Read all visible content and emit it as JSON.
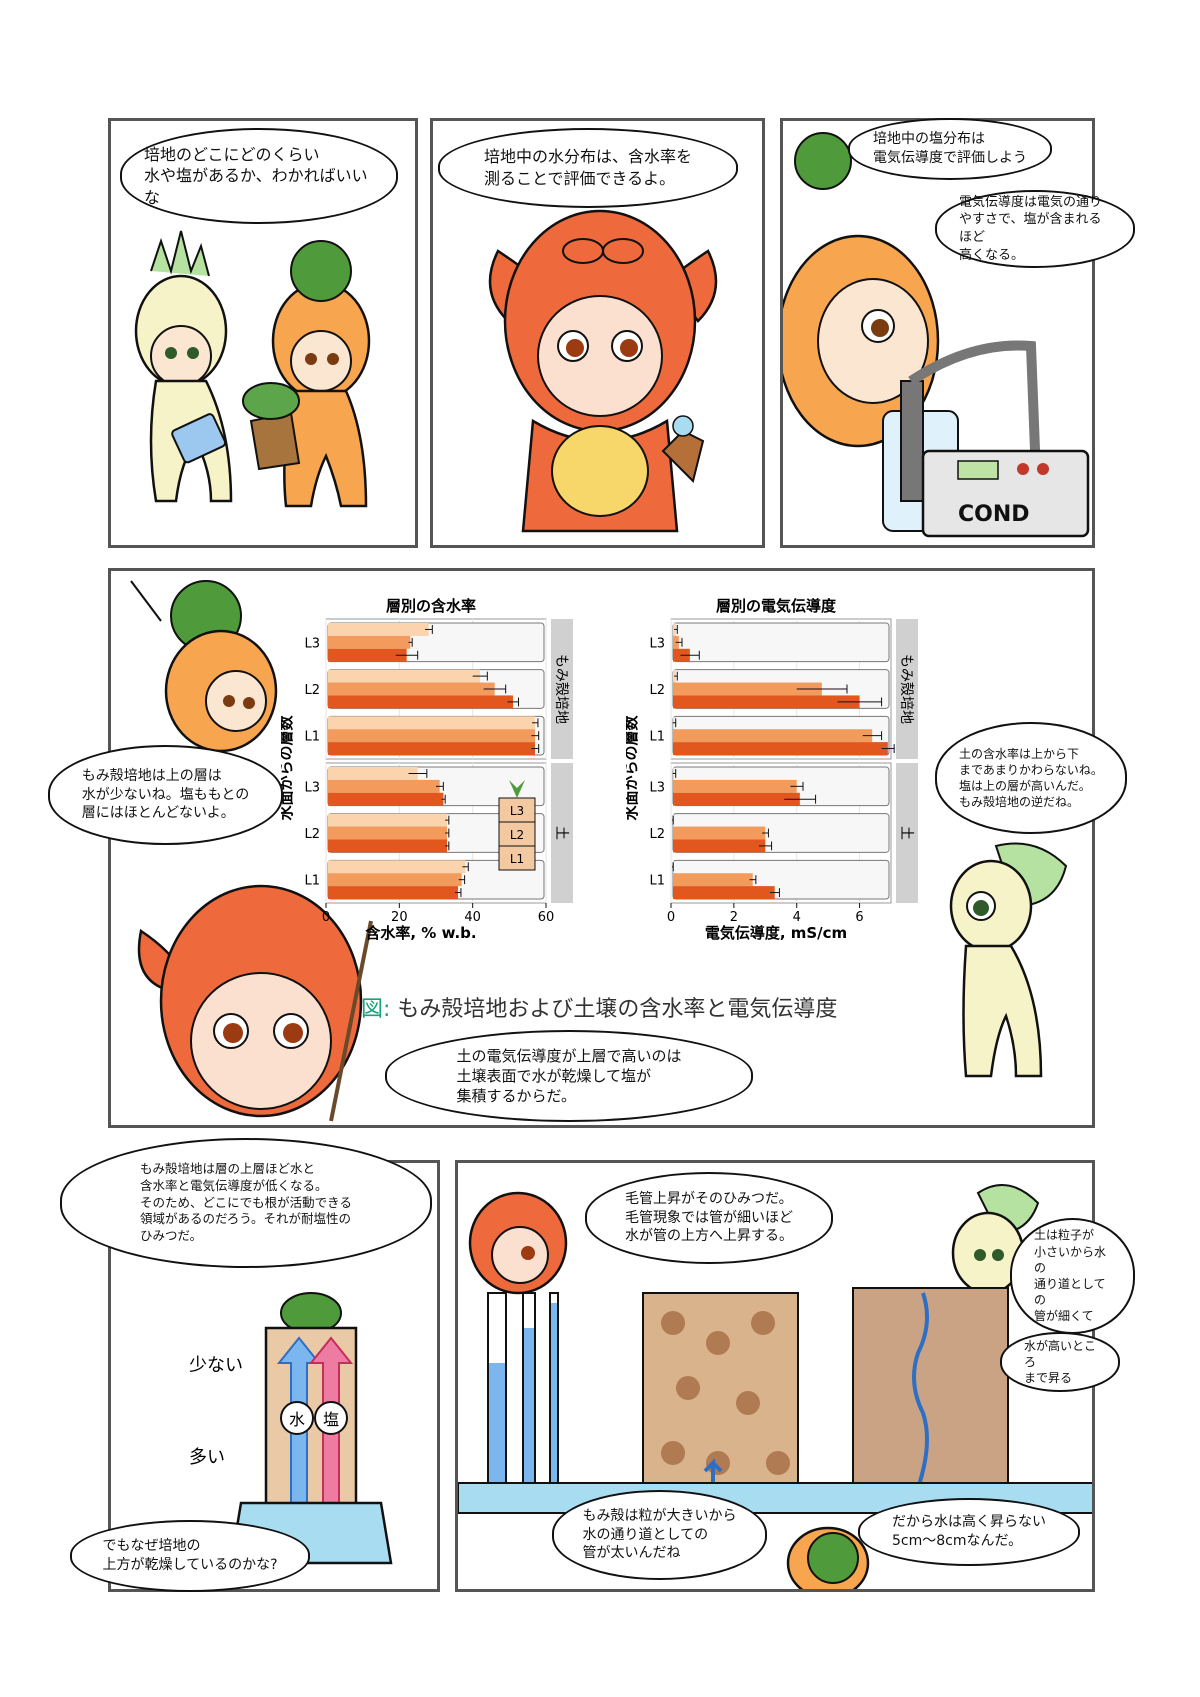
{
  "panel1": {
    "bubble": "培地のどこにどのくらい\n水や塩があるか、わかればいいな"
  },
  "panel2": {
    "bubble": "培地中の水分布は、含水率を\n測ることで評価できるよ。"
  },
  "panel3": {
    "bubble_top": "培地中の塩分布は\n電気伝導度で評価しよう",
    "bubble_side": "電気伝導度は電気の通り\nやすさで、塩が含まれるほど\n高くなる。",
    "meter_label": "COND"
  },
  "panel4": {
    "bubble_left": "もみ殻培地は上の層は\n水が少ないね。塩ももとの\n層にはほとんどないよ。",
    "bubble_right": "土の含水率は上から下\nまであまりかわらないね。\n塩は上の層が高いんだ。\nもみ殻培地の逆だね。",
    "bubble_bottom": "土の電気伝導度が上層で高いのは\n土壌表面で水が乾燥して塩が\n集積するからだ。",
    "caption_label": "図:",
    "caption_text": "もみ殻培地および土壌の含水率と電気伝導度",
    "strip_top": "もみ殻培地",
    "strip_bottom": "土",
    "ylabel": "水面からの層数",
    "legend_layers": [
      "L3",
      "L2",
      "L1"
    ]
  },
  "panel5": {
    "bubble_top": "もみ殻培地は層の上層ほど水と\n含水率と電気伝導度が低くなる。\nそのため、どこにでも根が活動できる\n領域があるのだろう。それが耐塩性の\nひみつだ。",
    "bubble_bottom": "でもなぜ培地の\n上方が乾燥しているのかな?",
    "label_few": "少ない",
    "label_many": "多い",
    "arrow_water": "水",
    "arrow_salt": "塩"
  },
  "panel6": {
    "bubble_top": "毛管上昇がそのひみつだ。\n毛管現象では管が細いほど\n水が管の上方へ上昇する。",
    "bubble_right1": "土は粒子が\n小さいから水の\n通り道としての\n管が細くて",
    "bubble_right2": "水が高いところ\nまで昇る",
    "bubble_bottom1": "もみ殻は粒が大きいから\n水の通り道としての\n管が太いんだね",
    "bubble_bottom2": "だから水は高く昇らない\n5cm〜8cmなんだ。"
  },
  "chart_data": [
    {
      "type": "bar",
      "title": "層別の含水率",
      "xlabel": "含水率, % w.b.",
      "ylabel": "水面からの層数",
      "xlim": [
        0,
        60
      ],
      "xticks": [
        0,
        20,
        40,
        60
      ],
      "facets": [
        "もみ殻培地",
        "土"
      ],
      "categories": [
        "L3",
        "L2",
        "L1"
      ],
      "panels": [
        {
          "facet": "もみ殻培地",
          "bars": {
            "L3": [
              28,
              23,
              22
            ],
            "L2": [
              42,
              46,
              51
            ],
            "L1": [
              57,
              57,
              57
            ]
          }
        },
        {
          "facet": "土",
          "bars": {
            "L3": [
              25,
              31,
              32
            ],
            "L2": [
              33,
              33,
              33
            ],
            "L1": [
              38,
              37,
              36
            ]
          }
        }
      ],
      "errors": {
        "もみ殻培地": {
          "L3": [
            1,
            0.5,
            3
          ],
          "L2": [
            2,
            3,
            1.5
          ],
          "L1": [
            0.8,
            1,
            1
          ]
        },
        "土": {
          "L3": [
            2.5,
            1,
            0.5
          ],
          "L2": [
            0.5,
            0.5,
            0.5
          ],
          "L1": [
            0.8,
            0.8,
            0.8
          ]
        }
      },
      "colors": [
        "#fbd3ac",
        "#f29b5c",
        "#e2571e"
      ]
    },
    {
      "type": "bar",
      "title": "層別の電気伝導度",
      "xlabel": "電気伝導度, mS/cm",
      "ylabel": "水面からの層数",
      "xlim": [
        0,
        7
      ],
      "xticks": [
        0,
        2,
        4,
        6
      ],
      "facets": [
        "もみ殻培地",
        "土"
      ],
      "categories": [
        "L3",
        "L2",
        "L1"
      ],
      "panels": [
        {
          "facet": "もみ殻培地",
          "bars": {
            "L3": [
              0.15,
              0.25,
              0.6
            ],
            "L2": [
              0.15,
              4.8,
              6.0
            ],
            "L1": [
              0.1,
              6.4,
              6.9
            ]
          }
        },
        {
          "facet": "土",
          "bars": {
            "L3": [
              0.1,
              4.0,
              4.1
            ],
            "L2": [
              0.05,
              3.0,
              3.0
            ],
            "L1": [
              0.05,
              2.6,
              3.3
            ]
          }
        }
      ],
      "errors": {
        "もみ殻培地": {
          "L3": [
            0.05,
            0.1,
            0.3
          ],
          "L2": [
            0.05,
            0.8,
            0.7
          ],
          "L1": [
            0.05,
            0.3,
            0.2
          ]
        },
        "土": {
          "L3": [
            0.05,
            0.2,
            0.5
          ],
          "L2": [
            0.02,
            0.1,
            0.2
          ],
          "L1": [
            0.02,
            0.1,
            0.15
          ]
        }
      },
      "colors": [
        "#fbd3ac",
        "#f29b5c",
        "#e2571e"
      ]
    }
  ]
}
